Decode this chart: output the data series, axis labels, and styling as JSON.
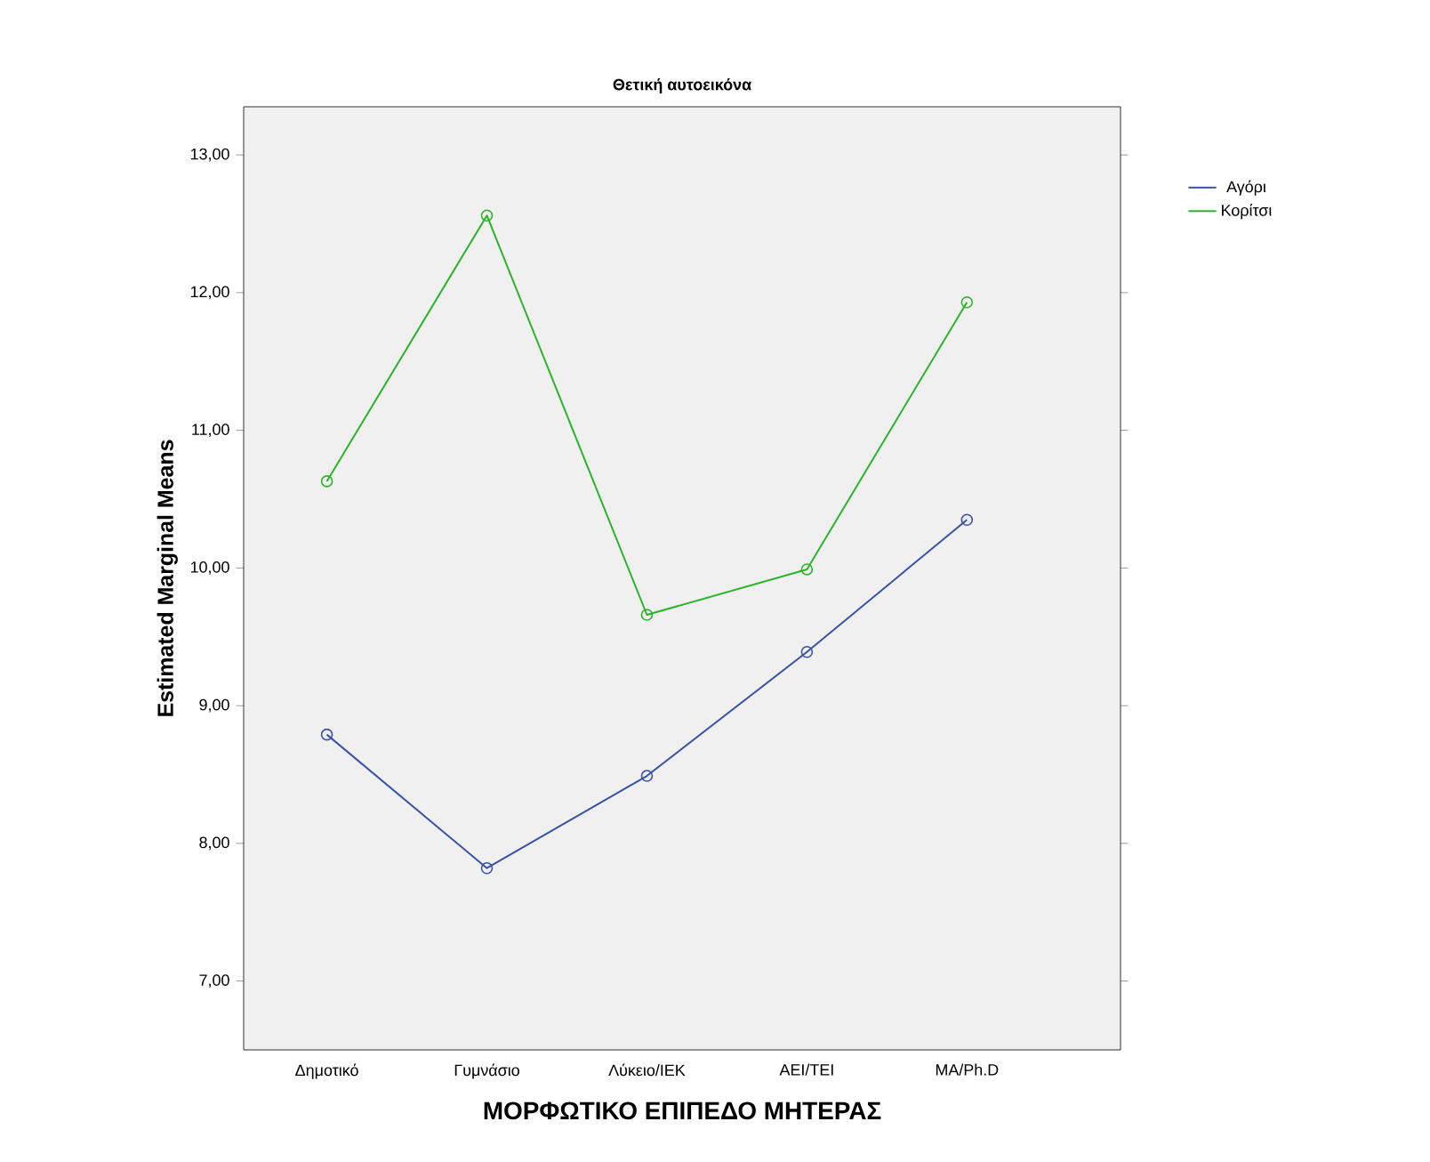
{
  "chart_data": {
    "type": "line",
    "title": "Θετική αυτοεικόνα",
    "xlabel": "ΜΟΡΦΩΤΙΚΟ ΕΠΙΠΕΔΟ ΜΗΤΕΡΑΣ",
    "ylabel": "Estimated Marginal Means",
    "categories": [
      "Δημοτικό",
      "Γυμνάσιο",
      "Λύκειο/ΙΕΚ",
      "ΑΕΙ/ΤΕΙ",
      "MA/Ph.D"
    ],
    "series": [
      {
        "name": "Αγόρι",
        "color": "#3a52a5",
        "values": [
          8.79,
          7.82,
          8.49,
          9.39,
          10.35
        ]
      },
      {
        "name": "Κορίτσι",
        "color": "#2cb32c",
        "values": [
          10.63,
          12.56,
          9.66,
          9.99,
          11.93
        ]
      }
    ],
    "ylim": [
      6.5,
      13.35
    ],
    "yticks": [
      {
        "value": 7,
        "label": "7,00"
      },
      {
        "value": 8,
        "label": "8,00"
      },
      {
        "value": 9,
        "label": "9,00"
      },
      {
        "value": 10,
        "label": "10,00"
      },
      {
        "value": 11,
        "label": "11,00"
      },
      {
        "value": 12,
        "label": "12,00"
      },
      {
        "value": 13,
        "label": "13,00"
      }
    ],
    "grid": false,
    "legend": "top right",
    "marker": "circle",
    "line_style": "solid"
  }
}
